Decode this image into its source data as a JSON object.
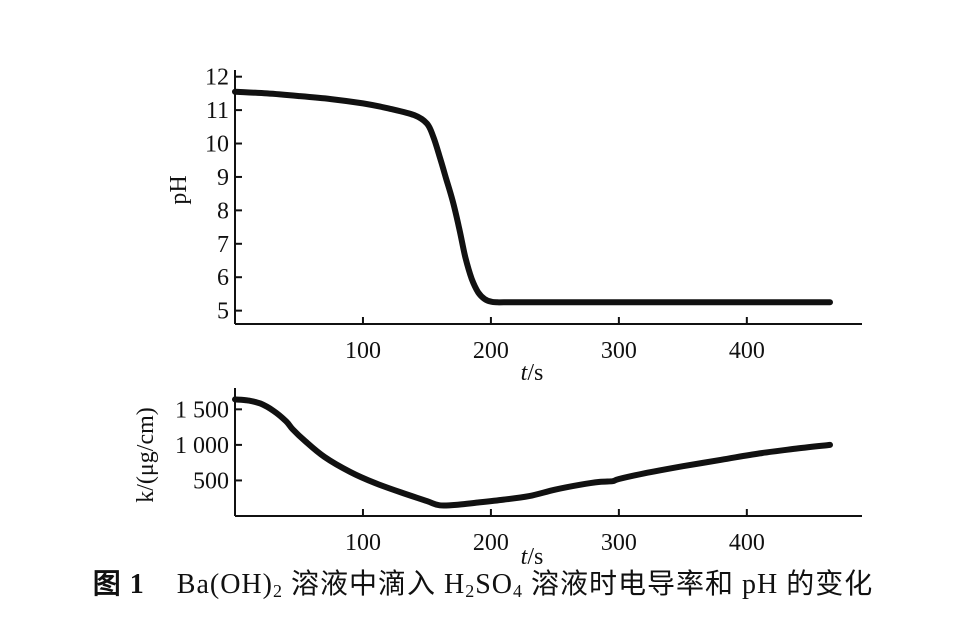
{
  "caption": {
    "figure_no": "图 1",
    "segments": [
      {
        "text": "Ba(OH)",
        "sub": false
      },
      {
        "text": "2",
        "sub": true
      },
      {
        "text": " 溶液中滴入 H",
        "sub": false
      },
      {
        "text": "2",
        "sub": true
      },
      {
        "text": "SO",
        "sub": false
      },
      {
        "text": "4",
        "sub": true
      },
      {
        "text": " 溶液时电导率和 pH 的变化",
        "sub": false
      }
    ]
  },
  "chart_data": [
    {
      "type": "line",
      "title": "",
      "xlabel": "t/s",
      "xlabel_var": "t",
      "xlabel_unit": "/s",
      "ylabel": "pH",
      "xlim": [
        0,
        490
      ],
      "ylim": [
        4.6,
        12.2
      ],
      "xticks": [
        100,
        200,
        300,
        400
      ],
      "yticks": [
        5,
        6,
        7,
        8,
        9,
        10,
        11,
        12
      ],
      "ytick_labels": [
        "5",
        "6",
        "7",
        "8",
        "9",
        "10",
        "11",
        "12"
      ],
      "xtick_labels": [
        "100",
        "200",
        "300",
        "400"
      ],
      "grid": false,
      "series": [
        {
          "x": [
            0,
            25,
            50,
            75,
            100,
            120,
            140,
            150,
            155,
            160,
            165,
            170,
            175,
            180,
            185,
            190,
            195,
            200,
            205,
            210,
            230,
            300,
            400,
            465
          ],
          "y": [
            11.55,
            11.5,
            11.42,
            11.33,
            11.2,
            11.05,
            10.85,
            10.6,
            10.2,
            9.6,
            8.95,
            8.3,
            7.5,
            6.6,
            5.95,
            5.55,
            5.35,
            5.27,
            5.25,
            5.25,
            5.25,
            5.25,
            5.25,
            5.25
          ]
        }
      ]
    },
    {
      "type": "line",
      "title": "",
      "xlabel": "t/s",
      "xlabel_var": "t",
      "xlabel_unit": "/s",
      "ylabel": "k/(μg/cm)",
      "xlim": [
        0,
        490
      ],
      "ylim": [
        0,
        1800
      ],
      "xticks": [
        100,
        200,
        300,
        400
      ],
      "yticks": [
        500,
        1000,
        1500
      ],
      "ytick_labels": [
        "500",
        "1 000",
        "1 500"
      ],
      "xtick_labels": [
        "100",
        "200",
        "300",
        "400"
      ],
      "grid": false,
      "series": [
        {
          "x": [
            0,
            10,
            20,
            30,
            40,
            45,
            55,
            70,
            90,
            110,
            130,
            150,
            160,
            175,
            190,
            210,
            230,
            250,
            270,
            285,
            295,
            300,
            320,
            350,
            380,
            410,
            440,
            465
          ],
          "y": [
            1640,
            1625,
            1580,
            1480,
            1330,
            1220,
            1050,
            830,
            620,
            460,
            330,
            210,
            150,
            160,
            190,
            230,
            280,
            370,
            440,
            480,
            490,
            520,
            600,
            700,
            790,
            880,
            950,
            1000
          ]
        }
      ]
    }
  ]
}
